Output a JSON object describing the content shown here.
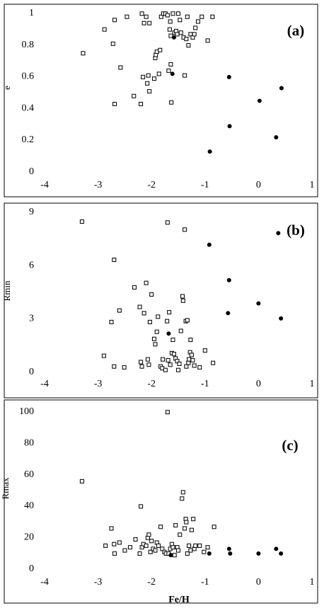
{
  "chart_data": [
    {
      "type": "scatter",
      "panel_label": "(a)",
      "ylabel": "e",
      "xlim": [
        -4,
        1
      ],
      "ylim": [
        0,
        1
      ],
      "x_ticks": [
        "-4",
        "-3",
        "-2",
        "-1",
        "0",
        "1"
      ],
      "y_ticks": [
        "0",
        "0.2",
        "0.4",
        "0.6",
        "0.8",
        "1"
      ],
      "series": [
        {
          "marker": "open-square",
          "points": [
            [
              -3.28,
              0.74
            ],
            [
              -2.88,
              0.89
            ],
            [
              -2.72,
              0.8
            ],
            [
              -2.69,
              0.95
            ],
            [
              -2.69,
              0.42
            ],
            [
              -2.58,
              0.65
            ],
            [
              -2.46,
              0.97
            ],
            [
              -2.33,
              0.47
            ],
            [
              -2.2,
              0.42
            ],
            [
              -2.18,
              0.99
            ],
            [
              -2.16,
              0.59
            ],
            [
              -2.14,
              0.93
            ],
            [
              -2.1,
              0.97
            ],
            [
              -2.08,
              0.55
            ],
            [
              -2.06,
              0.6
            ],
            [
              -2.04,
              0.5
            ],
            [
              -2.04,
              0.93
            ],
            [
              -1.95,
              0.58
            ],
            [
              -1.93,
              0.71
            ],
            [
              -1.92,
              0.73
            ],
            [
              -1.9,
              0.75
            ],
            [
              -1.86,
              0.61
            ],
            [
              -1.84,
              0.76
            ],
            [
              -1.82,
              0.97
            ],
            [
              -1.78,
              0.99
            ],
            [
              -1.74,
              0.99
            ],
            [
              -1.7,
              0.98
            ],
            [
              -1.68,
              0.63
            ],
            [
              -1.66,
              0.89
            ],
            [
              -1.65,
              0.94
            ],
            [
              -1.64,
              0.85
            ],
            [
              -1.64,
              0.67
            ],
            [
              -1.63,
              0.43
            ],
            [
              -1.6,
              0.99
            ],
            [
              -1.57,
              0.87
            ],
            [
              -1.54,
              0.88
            ],
            [
              -1.52,
              0.86
            ],
            [
              -1.5,
              0.99
            ],
            [
              -1.47,
              0.95
            ],
            [
              -1.45,
              0.87
            ],
            [
              -1.4,
              0.84
            ],
            [
              -1.38,
              0.6
            ],
            [
              -1.35,
              0.83
            ],
            [
              -1.33,
              0.97
            ],
            [
              -1.31,
              0.79
            ],
            [
              -1.27,
              0.86
            ],
            [
              -1.23,
              0.84
            ],
            [
              -1.2,
              0.86
            ],
            [
              -1.18,
              0.9
            ],
            [
              -1.13,
              0.94
            ],
            [
              -1.06,
              0.97
            ],
            [
              -0.95,
              0.82
            ],
            [
              -0.86,
              0.97
            ]
          ]
        },
        {
          "marker": "filled-circle",
          "points": [
            [
              -1.61,
              0.61
            ],
            [
              -1.58,
              0.84
            ],
            [
              -0.91,
              0.12
            ],
            [
              -0.55,
              0.59
            ],
            [
              -0.54,
              0.28
            ],
            [
              0.02,
              0.44
            ],
            [
              0.33,
              0.21
            ],
            [
              0.43,
              0.52
            ]
          ]
        }
      ]
    },
    {
      "type": "scatter",
      "panel_label": "(b)",
      "ylabel": "Rmin",
      "xlim": [
        -4,
        1
      ],
      "ylim": [
        0,
        9
      ],
      "x_ticks": [
        "-4",
        "-3",
        "-2",
        "-1",
        "0",
        "1"
      ],
      "y_ticks": [
        "0",
        "3",
        "6",
        "9"
      ],
      "series": [
        {
          "marker": "open-square",
          "points": [
            [
              -3.3,
              8.4
            ],
            [
              -2.89,
              0.85
            ],
            [
              -2.75,
              2.75
            ],
            [
              -2.7,
              6.25
            ],
            [
              -2.7,
              0.25
            ],
            [
              -2.6,
              3.4
            ],
            [
              -2.51,
              0.2
            ],
            [
              -2.32,
              4.7
            ],
            [
              -2.22,
              3.6
            ],
            [
              -2.2,
              0.5
            ],
            [
              -2.18,
              0.25
            ],
            [
              -2.14,
              3.25
            ],
            [
              -2.1,
              4.95
            ],
            [
              -2.07,
              0.65
            ],
            [
              -2.05,
              0.35
            ],
            [
              -2.03,
              2.75
            ],
            [
              -2.0,
              4.3
            ],
            [
              -1.95,
              1.8
            ],
            [
              -1.93,
              1.5
            ],
            [
              -1.9,
              2.2
            ],
            [
              -1.88,
              3.05
            ],
            [
              -1.83,
              0.25
            ],
            [
              -1.8,
              0.15
            ],
            [
              -1.79,
              0.65
            ],
            [
              -1.74,
              0.05
            ],
            [
              -1.71,
              2.8
            ],
            [
              -1.7,
              8.35
            ],
            [
              -1.69,
              0.6
            ],
            [
              -1.67,
              3.3
            ],
            [
              -1.65,
              0.35
            ],
            [
              -1.62,
              1.0
            ],
            [
              -1.6,
              1.75
            ],
            [
              -1.58,
              0.95
            ],
            [
              -1.55,
              0.7
            ],
            [
              -1.52,
              0.55
            ],
            [
              -1.5,
              0.05
            ],
            [
              -1.48,
              0.4
            ],
            [
              -1.45,
              2.25
            ],
            [
              -1.42,
              4.2
            ],
            [
              -1.41,
              3.95
            ],
            [
              -1.38,
              7.95
            ],
            [
              -1.36,
              2.8
            ],
            [
              -1.35,
              0.25
            ],
            [
              -1.33,
              2.85
            ],
            [
              -1.31,
              0.45
            ],
            [
              -1.3,
              0.65
            ],
            [
              -1.28,
              1.05
            ],
            [
              -1.27,
              1.75
            ],
            [
              -1.25,
              0.9
            ],
            [
              -1.23,
              0.6
            ],
            [
              -1.2,
              0.3
            ],
            [
              -1.1,
              0.2
            ],
            [
              -1.0,
              1.15
            ],
            [
              -0.85,
              0.45
            ]
          ]
        },
        {
          "marker": "filled-circle",
          "points": [
            [
              -1.68,
              2.1
            ],
            [
              -0.92,
              7.1
            ],
            [
              -0.55,
              5.1
            ],
            [
              -0.57,
              3.25
            ],
            [
              0.0,
              3.8
            ],
            [
              0.37,
              7.75
            ],
            [
              0.42,
              2.95
            ]
          ]
        }
      ]
    },
    {
      "type": "scatter",
      "panel_label": "(c)",
      "ylabel": "Rmax",
      "xlabel": "Fe/H",
      "xlim": [
        -4,
        1
      ],
      "ylim": [
        0,
        100
      ],
      "x_ticks": [
        "-4",
        "-3",
        "-2",
        "-1",
        "0",
        "1"
      ],
      "y_ticks": [
        "0",
        "20",
        "40",
        "60",
        "80",
        "100"
      ],
      "series": [
        {
          "marker": "open-square",
          "points": [
            [
              -3.3,
              55
            ],
            [
              -2.86,
              14
            ],
            [
              -2.75,
              25
            ],
            [
              -2.7,
              15
            ],
            [
              -2.69,
              9
            ],
            [
              -2.6,
              16
            ],
            [
              -2.5,
              11
            ],
            [
              -2.4,
              13
            ],
            [
              -2.3,
              18
            ],
            [
              -2.22,
              9
            ],
            [
              -2.2,
              39
            ],
            [
              -2.18,
              13
            ],
            [
              -2.15,
              15
            ],
            [
              -2.1,
              14
            ],
            [
              -2.07,
              19
            ],
            [
              -2.05,
              21
            ],
            [
              -2.02,
              10
            ],
            [
              -2.0,
              17
            ],
            [
              -1.97,
              12
            ],
            [
              -1.93,
              11
            ],
            [
              -1.9,
              16
            ],
            [
              -1.87,
              14
            ],
            [
              -1.83,
              26
            ],
            [
              -1.8,
              12
            ],
            [
              -1.76,
              10
            ],
            [
              -1.73,
              9
            ],
            [
              -1.7,
              99
            ],
            [
              -1.68,
              9
            ],
            [
              -1.65,
              12
            ],
            [
              -1.62,
              15
            ],
            [
              -1.6,
              13
            ],
            [
              -1.57,
              8
            ],
            [
              -1.55,
              27
            ],
            [
              -1.52,
              13
            ],
            [
              -1.5,
              11
            ],
            [
              -1.47,
              21
            ],
            [
              -1.43,
              44
            ],
            [
              -1.41,
              48
            ],
            [
              -1.38,
              25
            ],
            [
              -1.36,
              31
            ],
            [
              -1.35,
              29
            ],
            [
              -1.33,
              9
            ],
            [
              -1.3,
              14
            ],
            [
              -1.27,
              11
            ],
            [
              -1.25,
              24
            ],
            [
              -1.22,
              31
            ],
            [
              -1.2,
              12
            ],
            [
              -1.18,
              14
            ],
            [
              -1.1,
              14
            ],
            [
              -1.02,
              10
            ],
            [
              -0.95,
              13
            ],
            [
              -0.83,
              26
            ]
          ]
        },
        {
          "marker": "filled-circle",
          "points": [
            [
              -1.64,
              8
            ],
            [
              -0.92,
              9
            ],
            [
              -0.55,
              12
            ],
            [
              -0.53,
              9
            ],
            [
              0.0,
              9
            ],
            [
              0.33,
              12
            ],
            [
              0.42,
              9
            ]
          ]
        }
      ]
    }
  ]
}
